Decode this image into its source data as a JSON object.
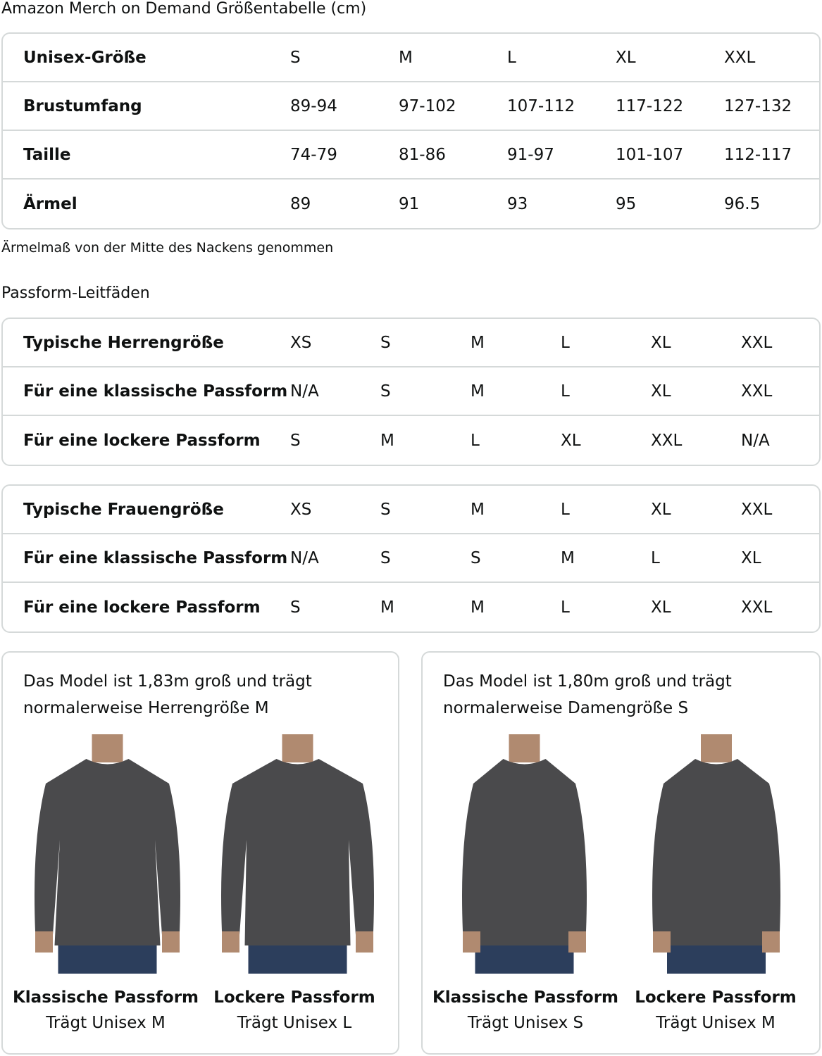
{
  "title": "Amazon Merch on Demand Größentabelle (cm)",
  "unisex_table": {
    "rows": [
      {
        "label": "Unisex-Größe",
        "values": [
          "S",
          "M",
          "L",
          "XL",
          "XXL"
        ]
      },
      {
        "label": "Brustumfang",
        "values": [
          "89-94",
          "97-102",
          "107-112",
          "117-122",
          "127-132"
        ]
      },
      {
        "label": "Taille",
        "values": [
          "74-79",
          "81-86",
          "91-97",
          "101-107",
          "112-117"
        ]
      },
      {
        "label": "Ärmel",
        "values": [
          "89",
          "91",
          "93",
          "95",
          "96.5"
        ]
      }
    ]
  },
  "sleeve_note": "Ärmelmaß von der Mitte des Nackens genommen",
  "fit_title": "Passform-Leitfäden",
  "men_table": {
    "rows": [
      {
        "label": "Typische Herrengröße",
        "values": [
          "XS",
          "S",
          "M",
          "L",
          "XL",
          "XXL"
        ]
      },
      {
        "label": "Für eine klassische Passform",
        "values": [
          "N/A",
          "S",
          "M",
          "L",
          "XL",
          "XXL"
        ]
      },
      {
        "label": "Für eine lockere Passform",
        "values": [
          "S",
          "M",
          "L",
          "XL",
          "XXL",
          "N/A"
        ]
      }
    ]
  },
  "women_table": {
    "rows": [
      {
        "label": "Typische Frauengröße",
        "values": [
          "XS",
          "S",
          "M",
          "L",
          "XL",
          "XXL"
        ]
      },
      {
        "label": "Für eine klassische Passform",
        "values": [
          "N/A",
          "S",
          "S",
          "M",
          "L",
          "XL"
        ]
      },
      {
        "label": "Für eine lockere Passform",
        "values": [
          "S",
          "M",
          "M",
          "L",
          "XL",
          "XXL"
        ]
      }
    ]
  },
  "cards": [
    {
      "text": "Das Model ist 1,83m groß und trägt normalerweise Herrengröße M",
      "photos": [
        {
          "fit": "Klassische Passform",
          "wears": "Trägt Unisex M"
        },
        {
          "fit": "Lockere Passform",
          "wears": "Trägt Unisex L"
        }
      ]
    },
    {
      "text": "Das Model ist 1,80m groß und trägt normalerweise Damengröße S",
      "photos": [
        {
          "fit": "Klassische Passform",
          "wears": "Trägt Unisex S"
        },
        {
          "fit": "Lockere Passform",
          "wears": "Trägt Unisex M"
        }
      ]
    }
  ],
  "colors": {
    "border": "#d5d9d9",
    "sweatshirt": "#4a4a4c",
    "jeans": "#2c3e5c"
  }
}
